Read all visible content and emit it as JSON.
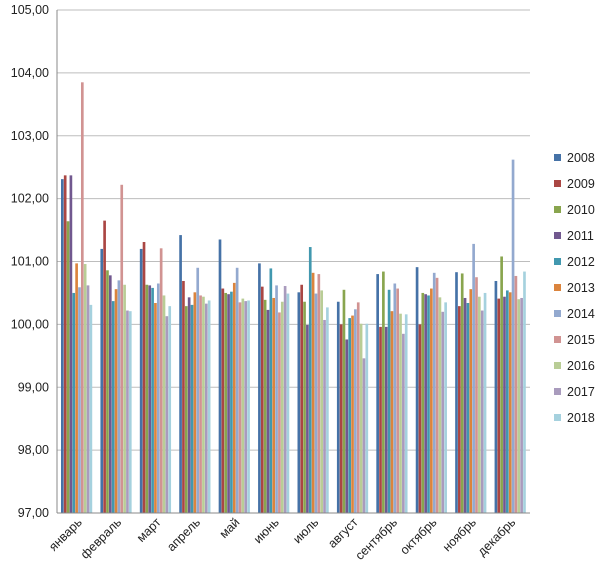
{
  "chart_data": {
    "type": "bar",
    "title": "",
    "xlabel": "",
    "ylabel": "",
    "ylim": [
      97,
      105
    ],
    "yticks": [
      97,
      98,
      99,
      100,
      101,
      102,
      103,
      104,
      105
    ],
    "ytick_labels": [
      "97,00",
      "98,00",
      "99,00",
      "100,00",
      "101,00",
      "102,00",
      "103,00",
      "104,00",
      "105,00"
    ],
    "grid": "horizontal",
    "legend_position": "right",
    "categories": [
      "январь",
      "февраль",
      "март",
      "апрель",
      "май",
      "июнь",
      "июль",
      "август",
      "сентябрь",
      "октябрь",
      "ноябрь",
      "декабрь"
    ],
    "series": [
      {
        "name": "2008",
        "color": "#4572A7",
        "values": [
          102.31,
          101.2,
          101.2,
          101.42,
          101.35,
          100.97,
          100.51,
          100.36,
          100.8,
          100.91,
          100.83,
          100.69
        ]
      },
      {
        "name": "2009",
        "color": "#AA4643",
        "values": [
          102.37,
          101.65,
          101.31,
          100.69,
          100.57,
          100.6,
          100.63,
          100.0,
          99.96,
          100.0,
          100.29,
          100.41
        ]
      },
      {
        "name": "2010",
        "color": "#89A54E",
        "values": [
          101.64,
          100.86,
          100.63,
          100.29,
          100.5,
          100.39,
          100.36,
          100.55,
          100.84,
          100.5,
          100.81,
          101.08
        ]
      },
      {
        "name": "2011",
        "color": "#71588F",
        "values": [
          102.37,
          100.78,
          100.62,
          100.43,
          100.48,
          100.23,
          99.99,
          99.76,
          99.96,
          100.48,
          100.42,
          100.44
        ]
      },
      {
        "name": "2012",
        "color": "#4198AF",
        "values": [
          100.5,
          100.37,
          100.58,
          100.31,
          100.52,
          100.89,
          101.23,
          100.1,
          100.55,
          100.46,
          100.34,
          100.54
        ]
      },
      {
        "name": "2013",
        "color": "#DB843D",
        "values": [
          100.97,
          100.56,
          100.34,
          100.51,
          100.66,
          100.42,
          100.82,
          100.14,
          100.21,
          100.57,
          100.56,
          100.51
        ]
      },
      {
        "name": "2014",
        "color": "#93A9CF",
        "values": [
          100.59,
          100.7,
          100.65,
          100.9,
          100.9,
          100.62,
          100.49,
          100.24,
          100.65,
          100.82,
          101.28,
          102.62
        ]
      },
      {
        "name": "2015",
        "color": "#D19392",
        "values": [
          103.85,
          102.22,
          101.21,
          100.46,
          100.35,
          100.19,
          100.8,
          100.35,
          100.57,
          100.74,
          100.75,
          100.77
        ]
      },
      {
        "name": "2016",
        "color": "#B9CD96",
        "values": [
          100.96,
          100.63,
          100.46,
          100.44,
          100.41,
          100.36,
          100.54,
          100.01,
          100.17,
          100.43,
          100.44,
          100.4
        ]
      },
      {
        "name": "2017",
        "color": "#A99BBD",
        "values": [
          100.62,
          100.22,
          100.13,
          100.33,
          100.37,
          100.61,
          100.07,
          99.46,
          99.85,
          100.2,
          100.22,
          100.42
        ]
      },
      {
        "name": "2018",
        "color": "#A5D1DE",
        "values": [
          100.31,
          100.21,
          100.29,
          100.38,
          100.38,
          100.49,
          100.27,
          100.01,
          100.16,
          100.35,
          100.5,
          100.84
        ]
      }
    ]
  }
}
